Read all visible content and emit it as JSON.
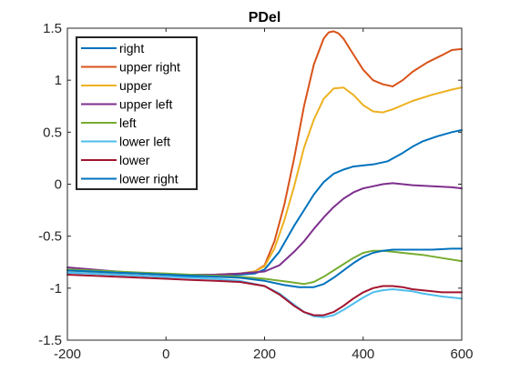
{
  "chart_data": {
    "type": "line",
    "title": "PDel",
    "xlabel": "",
    "ylabel": "",
    "xlim": [
      -200,
      600
    ],
    "ylim": [
      -1.5,
      1.5
    ],
    "xticks": [
      -200,
      0,
      200,
      400,
      600
    ],
    "yticks": [
      1.5,
      1,
      0.5,
      0,
      -0.5,
      -1,
      -1.5
    ],
    "xtick_labels": [
      "-200",
      "0",
      "200",
      "400",
      "600"
    ],
    "ytick_labels": [
      "1.5",
      "1",
      "0.5",
      "0",
      "-0.5",
      "-1",
      "-1.5"
    ],
    "grid": false,
    "legend_position": "top-left",
    "series": [
      {
        "name": "right",
        "color": "#0072BD",
        "x": [
          -200,
          -150,
          -100,
          -50,
          0,
          50,
          100,
          150,
          180,
          200,
          230,
          260,
          280,
          300,
          320,
          340,
          360,
          380,
          400,
          420,
          450,
          480,
          500,
          520,
          550,
          580,
          600
        ],
        "y": [
          -0.85,
          -0.86,
          -0.87,
          -0.88,
          -0.89,
          -0.89,
          -0.88,
          -0.87,
          -0.86,
          -0.82,
          -0.65,
          -0.4,
          -0.25,
          -0.1,
          0.02,
          0.1,
          0.14,
          0.17,
          0.18,
          0.19,
          0.22,
          0.3,
          0.36,
          0.41,
          0.46,
          0.5,
          0.52
        ]
      },
      {
        "name": "upper right",
        "color": "#D95319",
        "x": [
          -200,
          -150,
          -100,
          -50,
          0,
          50,
          100,
          150,
          180,
          200,
          220,
          240,
          260,
          280,
          300,
          320,
          330,
          340,
          350,
          360,
          380,
          400,
          420,
          440,
          460,
          480,
          500,
          530,
          560,
          580,
          600
        ],
        "y": [
          -0.83,
          -0.84,
          -0.85,
          -0.86,
          -0.87,
          -0.87,
          -0.87,
          -0.86,
          -0.84,
          -0.78,
          -0.55,
          -0.2,
          0.25,
          0.75,
          1.15,
          1.4,
          1.46,
          1.47,
          1.45,
          1.4,
          1.25,
          1.1,
          1.0,
          0.96,
          0.94,
          1.0,
          1.08,
          1.17,
          1.24,
          1.29,
          1.3
        ]
      },
      {
        "name": "upper",
        "color": "#EDB120",
        "x": [
          -200,
          -150,
          -100,
          -50,
          0,
          50,
          100,
          150,
          180,
          200,
          220,
          240,
          260,
          280,
          300,
          320,
          340,
          360,
          380,
          400,
          420,
          440,
          460,
          500,
          540,
          580,
          600
        ],
        "y": [
          -0.83,
          -0.84,
          -0.85,
          -0.86,
          -0.87,
          -0.87,
          -0.87,
          -0.86,
          -0.84,
          -0.79,
          -0.62,
          -0.35,
          -0.02,
          0.35,
          0.62,
          0.82,
          0.92,
          0.93,
          0.86,
          0.76,
          0.7,
          0.69,
          0.72,
          0.8,
          0.86,
          0.91,
          0.93
        ]
      },
      {
        "name": "upper left",
        "color": "#7E2F8E",
        "x": [
          -200,
          -150,
          -100,
          -50,
          0,
          50,
          100,
          150,
          200,
          230,
          260,
          280,
          300,
          320,
          340,
          360,
          380,
          400,
          420,
          440,
          460,
          480,
          500,
          540,
          580,
          600
        ],
        "y": [
          -0.8,
          -0.82,
          -0.84,
          -0.86,
          -0.87,
          -0.87,
          -0.87,
          -0.86,
          -0.84,
          -0.78,
          -0.65,
          -0.55,
          -0.43,
          -0.32,
          -0.22,
          -0.14,
          -0.08,
          -0.04,
          -0.02,
          0.0,
          0.01,
          0.0,
          -0.01,
          -0.02,
          -0.03,
          -0.04
        ]
      },
      {
        "name": "left",
        "color": "#77AC30",
        "x": [
          -200,
          -150,
          -100,
          -50,
          0,
          50,
          100,
          150,
          200,
          250,
          280,
          300,
          320,
          340,
          360,
          380,
          400,
          420,
          440,
          460,
          480,
          500,
          520,
          560,
          600
        ],
        "y": [
          -0.82,
          -0.83,
          -0.84,
          -0.85,
          -0.86,
          -0.87,
          -0.88,
          -0.89,
          -0.91,
          -0.94,
          -0.96,
          -0.94,
          -0.89,
          -0.83,
          -0.77,
          -0.71,
          -0.66,
          -0.64,
          -0.64,
          -0.65,
          -0.66,
          -0.67,
          -0.68,
          -0.71,
          -0.74
        ]
      },
      {
        "name": "lower left",
        "color": "#4DBEEE",
        "x": [
          -200,
          -150,
          -100,
          -50,
          0,
          50,
          100,
          150,
          200,
          230,
          260,
          280,
          300,
          320,
          340,
          360,
          380,
          400,
          420,
          440,
          460,
          480,
          500,
          520,
          560,
          600
        ],
        "y": [
          -0.85,
          -0.86,
          -0.87,
          -0.88,
          -0.89,
          -0.9,
          -0.91,
          -0.93,
          -0.98,
          -1.05,
          -1.16,
          -1.23,
          -1.27,
          -1.28,
          -1.26,
          -1.21,
          -1.15,
          -1.09,
          -1.04,
          -1.02,
          -1.01,
          -1.02,
          -1.03,
          -1.05,
          -1.08,
          -1.1
        ]
      },
      {
        "name": "lower",
        "color": "#A2142F",
        "x": [
          -200,
          -150,
          -100,
          -50,
          0,
          50,
          100,
          150,
          200,
          230,
          260,
          280,
          300,
          320,
          340,
          360,
          380,
          400,
          420,
          440,
          460,
          480,
          500,
          520,
          560,
          600
        ],
        "y": [
          -0.87,
          -0.88,
          -0.89,
          -0.9,
          -0.91,
          -0.92,
          -0.93,
          -0.94,
          -0.98,
          -1.06,
          -1.17,
          -1.23,
          -1.26,
          -1.26,
          -1.23,
          -1.17,
          -1.1,
          -1.04,
          -1.0,
          -0.98,
          -0.98,
          -0.99,
          -1.01,
          -1.02,
          -1.04,
          -1.04
        ]
      },
      {
        "name": "lower right",
        "color": "#0072BD",
        "x": [
          -200,
          -150,
          -100,
          -50,
          0,
          50,
          100,
          150,
          200,
          240,
          270,
          300,
          320,
          340,
          360,
          380,
          400,
          420,
          440,
          460,
          480,
          500,
          540,
          580,
          600
        ],
        "y": [
          -0.83,
          -0.84,
          -0.85,
          -0.86,
          -0.87,
          -0.88,
          -0.89,
          -0.9,
          -0.93,
          -0.97,
          -0.99,
          -0.99,
          -0.96,
          -0.9,
          -0.83,
          -0.76,
          -0.7,
          -0.66,
          -0.64,
          -0.63,
          -0.63,
          -0.63,
          -0.63,
          -0.62,
          -0.62
        ]
      }
    ]
  }
}
